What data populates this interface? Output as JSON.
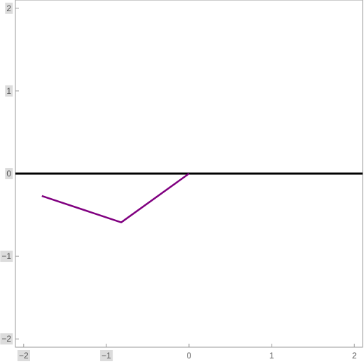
{
  "chart_data": {
    "type": "line",
    "title": "",
    "xlabel": "",
    "ylabel": "",
    "xlim": [
      -2.1,
      2.1
    ],
    "ylim": [
      -2.1,
      2.1
    ],
    "xticks": [
      -2,
      -1,
      0,
      1,
      2
    ],
    "yticks": [
      -2,
      -1,
      0,
      1,
      2
    ],
    "xtick_labels": [
      "−2",
      "−1",
      "0",
      "1",
      "2"
    ],
    "ytick_labels": [
      "−2",
      "−1",
      "0",
      "1",
      "2"
    ],
    "grid": false,
    "reference_lines": [
      {
        "axis": "y",
        "value": 0,
        "color": "#000000"
      }
    ],
    "series": [
      {
        "color": "#800080",
        "x": [
          -1.78,
          -0.82,
          0.0
        ],
        "y": [
          -0.27,
          -0.59,
          0.0
        ]
      }
    ]
  }
}
